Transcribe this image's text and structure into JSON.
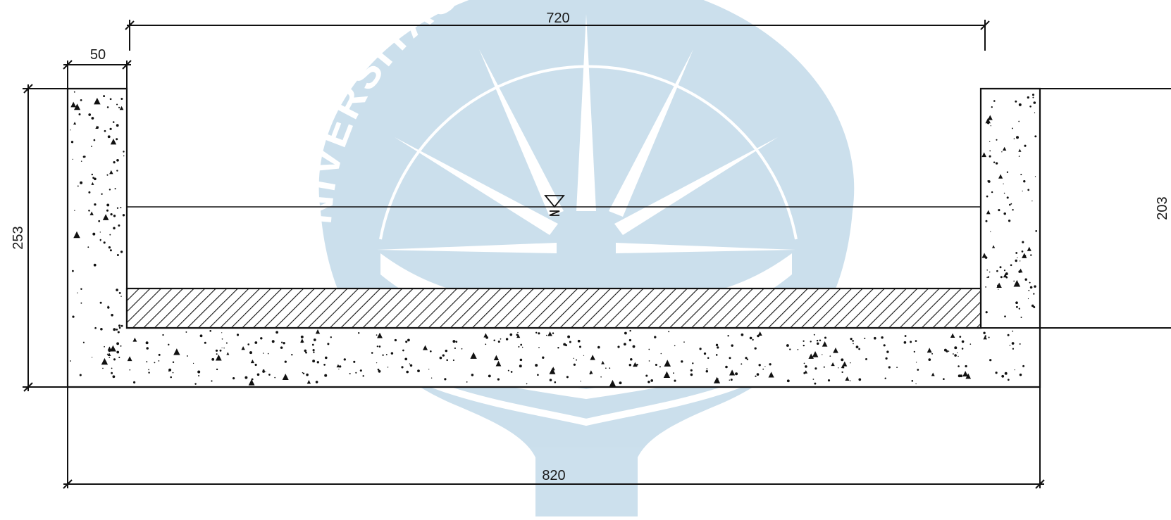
{
  "watermark": {
    "text": "UNIVERSITAS ATMA JAYA YOGYAKARTA",
    "color": "#c9deec"
  },
  "drawing": {
    "line_color": "#111111",
    "water_symbol": "water-surface-symbol",
    "dimensions": {
      "top_inner_width": "720",
      "wall_thickness": "50",
      "left_height": "253",
      "right_height": "203",
      "bottom_total_width": "820"
    }
  }
}
